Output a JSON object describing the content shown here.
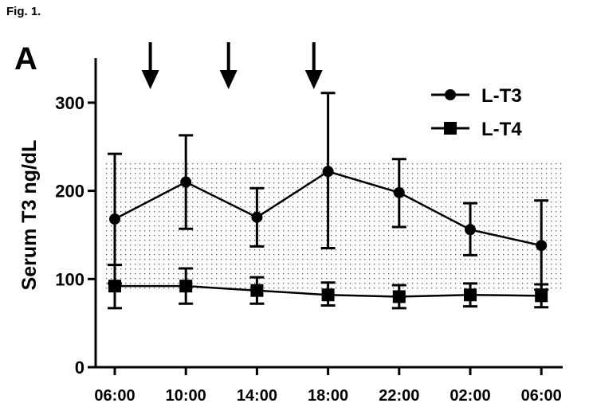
{
  "figure_label": "Fig. 1.",
  "panel_label": "A",
  "chart_data": {
    "type": "line",
    "ylabel": "Serum T3 ng/dL",
    "xlabel": "",
    "categories": [
      "06:00",
      "10:00",
      "14:00",
      "18:00",
      "22:00",
      "02:00",
      "06:00"
    ],
    "ylim": [
      0,
      350
    ],
    "yticks": [
      0,
      100,
      200,
      300
    ],
    "reference_range": [
      88,
      235
    ],
    "dose_arrows_at": [
      0.5,
      1.6,
      2.8
    ],
    "legend_position": "top-right",
    "series": [
      {
        "name": "L-T3",
        "marker": "circle",
        "values": [
          168,
          210,
          170,
          222,
          198,
          156,
          138
        ],
        "err_upper": [
          242,
          263,
          203,
          311,
          236,
          186,
          189
        ],
        "err_lower": [
          95,
          157,
          137,
          135,
          159,
          127,
          88
        ]
      },
      {
        "name": "L-T4",
        "marker": "square",
        "values": [
          92,
          92,
          87,
          82,
          80,
          82,
          81
        ],
        "err_upper": [
          116,
          112,
          102,
          96,
          93,
          95,
          94
        ],
        "err_lower": [
          67,
          72,
          72,
          70,
          67,
          69,
          68
        ]
      }
    ]
  }
}
